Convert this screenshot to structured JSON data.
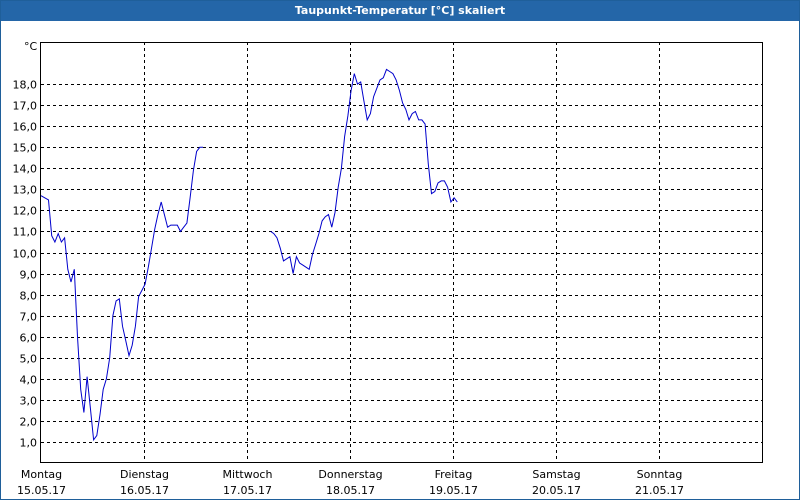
{
  "chart_data": {
    "type": "line",
    "title": "Taupunkt-Temperatur [°C] skaliert",
    "ylabel": "°C",
    "ylim": [
      0,
      20
    ],
    "xlim": [
      "2017-05-15 00:00",
      "2017-05-22 00:00"
    ],
    "grid": true,
    "y_ticks": [
      "1,0",
      "2,0",
      "3,0",
      "4,0",
      "5,0",
      "6,0",
      "7,0",
      "8,0",
      "9,0",
      "10,0",
      "11,0",
      "12,0",
      "13,0",
      "14,0",
      "15,0",
      "16,0",
      "17,0",
      "18,0"
    ],
    "x_ticks": [
      {
        "day": "Montag",
        "date": "15.05.17",
        "at": "2017-05-15 00:00"
      },
      {
        "day": "Dienstag",
        "date": "16.05.17",
        "at": "2017-05-16 00:00"
      },
      {
        "day": "Mittwoch",
        "date": "17.05.17",
        "at": "2017-05-17 00:00"
      },
      {
        "day": "Donnerstag",
        "date": "18.05.17",
        "at": "2017-05-18 00:00"
      },
      {
        "day": "Freitag",
        "date": "19.05.17",
        "at": "2017-05-19 00:00"
      },
      {
        "day": "Samstag",
        "date": "20.05.17",
        "at": "2017-05-20 00:00"
      },
      {
        "day": "Sonntag",
        "date": "21.05.17",
        "at": "2017-05-21 00:00"
      }
    ],
    "series": [
      {
        "color": "#0000cc",
        "segments": [
          [
            [
              "2017-05-15 00:00",
              12.7
            ],
            [
              "2017-05-15 01:45",
              12.5
            ],
            [
              "2017-05-15 02:30",
              10.8
            ],
            [
              "2017-05-15 03:15",
              10.5
            ],
            [
              "2017-05-15 04:00",
              10.9
            ],
            [
              "2017-05-15 04:45",
              10.5
            ],
            [
              "2017-05-15 05:30",
              10.7
            ],
            [
              "2017-05-15 06:15",
              9.2
            ],
            [
              "2017-05-15 07:00",
              8.6
            ],
            [
              "2017-05-15 07:45",
              9.2
            ],
            [
              "2017-05-15 08:30",
              6.0
            ],
            [
              "2017-05-15 09:15",
              3.5
            ],
            [
              "2017-05-15 10:00",
              2.4
            ],
            [
              "2017-05-15 10:45",
              4.1
            ],
            [
              "2017-05-15 11:30",
              2.6
            ],
            [
              "2017-05-15 12:15",
              1.1
            ],
            [
              "2017-05-15 13:00",
              1.3
            ],
            [
              "2017-05-15 13:45",
              2.3
            ],
            [
              "2017-05-15 14:30",
              3.5
            ],
            [
              "2017-05-15 15:15",
              4.0
            ],
            [
              "2017-05-15 16:00",
              5.0
            ],
            [
              "2017-05-15 16:45",
              7.0
            ],
            [
              "2017-05-15 17:30",
              7.7
            ],
            [
              "2017-05-15 18:15",
              7.8
            ],
            [
              "2017-05-15 19:00",
              6.5
            ],
            [
              "2017-05-15 19:45",
              5.8
            ],
            [
              "2017-05-15 20:30",
              5.1
            ],
            [
              "2017-05-15 21:15",
              5.6
            ],
            [
              "2017-05-15 22:00",
              6.5
            ],
            [
              "2017-05-15 22:45",
              7.9
            ],
            [
              "2017-05-15 23:30",
              8.2
            ],
            [
              "2017-05-16 00:15",
              8.5
            ],
            [
              "2017-05-16 01:00",
              9.3
            ],
            [
              "2017-05-16 01:45",
              10.2
            ],
            [
              "2017-05-16 02:30",
              11.1
            ],
            [
              "2017-05-16 03:15",
              11.8
            ],
            [
              "2017-05-16 04:00",
              12.4
            ],
            [
              "2017-05-16 04:45",
              11.8
            ],
            [
              "2017-05-16 05:30",
              11.2
            ],
            [
              "2017-05-16 06:15",
              11.3
            ],
            [
              "2017-05-16 07:00",
              11.3
            ],
            [
              "2017-05-16 07:45",
              11.3
            ],
            [
              "2017-05-16 08:30",
              11.0
            ],
            [
              "2017-05-16 09:15",
              11.2
            ],
            [
              "2017-05-16 10:00",
              11.4
            ],
            [
              "2017-05-16 10:45",
              12.6
            ],
            [
              "2017-05-16 11:30",
              13.9
            ],
            [
              "2017-05-16 12:15",
              14.8
            ],
            [
              "2017-05-16 13:00",
              15.0
            ],
            [
              "2017-05-16 13:45",
              15.0
            ]
          ],
          [
            [
              "2017-05-17 05:30",
              11.0
            ],
            [
              "2017-05-17 06:15",
              10.9
            ],
            [
              "2017-05-17 07:00",
              10.7
            ],
            [
              "2017-05-17 07:45",
              10.2
            ],
            [
              "2017-05-17 08:30",
              9.6
            ],
            [
              "2017-05-17 09:15",
              9.7
            ],
            [
              "2017-05-17 10:00",
              9.8
            ],
            [
              "2017-05-17 10:45",
              9.0
            ],
            [
              "2017-05-17 11:30",
              9.8
            ],
            [
              "2017-05-17 12:15",
              9.5
            ],
            [
              "2017-05-17 13:00",
              9.4
            ],
            [
              "2017-05-17 13:45",
              9.3
            ],
            [
              "2017-05-17 14:30",
              9.2
            ],
            [
              "2017-05-17 15:15",
              9.9
            ],
            [
              "2017-05-17 16:00",
              10.4
            ],
            [
              "2017-05-17 16:45",
              10.9
            ],
            [
              "2017-05-17 17:30",
              11.5
            ],
            [
              "2017-05-17 18:15",
              11.7
            ],
            [
              "2017-05-17 19:00",
              11.8
            ],
            [
              "2017-05-17 19:45",
              11.2
            ],
            [
              "2017-05-17 20:30",
              11.9
            ],
            [
              "2017-05-17 21:15",
              13.1
            ],
            [
              "2017-05-17 22:00",
              14.0
            ],
            [
              "2017-05-17 22:45",
              15.5
            ],
            [
              "2017-05-17 23:30",
              16.5
            ],
            [
              "2017-05-18 00:15",
              17.7
            ],
            [
              "2017-05-18 01:00",
              18.5
            ],
            [
              "2017-05-18 01:45",
              18.0
            ],
            [
              "2017-05-18 02:30",
              18.1
            ],
            [
              "2017-05-18 03:15",
              17.2
            ],
            [
              "2017-05-18 04:00",
              16.3
            ],
            [
              "2017-05-18 04:45",
              16.6
            ],
            [
              "2017-05-18 05:30",
              17.4
            ],
            [
              "2017-05-18 06:15",
              17.8
            ],
            [
              "2017-05-18 07:00",
              18.2
            ],
            [
              "2017-05-18 07:45",
              18.3
            ],
            [
              "2017-05-18 08:30",
              18.7
            ],
            [
              "2017-05-18 09:15",
              18.6
            ],
            [
              "2017-05-18 10:00",
              18.5
            ],
            [
              "2017-05-18 10:45",
              18.2
            ],
            [
              "2017-05-18 11:30",
              17.7
            ],
            [
              "2017-05-18 12:15",
              17.1
            ],
            [
              "2017-05-18 13:00",
              16.8
            ],
            [
              "2017-05-18 13:45",
              16.3
            ],
            [
              "2017-05-18 14:30",
              16.6
            ],
            [
              "2017-05-18 15:15",
              16.7
            ],
            [
              "2017-05-18 16:00",
              16.3
            ],
            [
              "2017-05-18 16:45",
              16.3
            ],
            [
              "2017-05-18 17:30",
              16.1
            ],
            [
              "2017-05-18 18:15",
              14.2
            ],
            [
              "2017-05-18 19:00",
              12.8
            ],
            [
              "2017-05-18 19:45",
              12.9
            ],
            [
              "2017-05-18 20:30",
              13.3
            ],
            [
              "2017-05-18 21:15",
              13.4
            ],
            [
              "2017-05-18 22:00",
              13.4
            ],
            [
              "2017-05-18 22:45",
              13.1
            ],
            [
              "2017-05-18 23:30",
              12.4
            ],
            [
              "2017-05-19 00:15",
              12.6
            ],
            [
              "2017-05-19 01:00",
              12.4
            ]
          ]
        ]
      }
    ]
  }
}
